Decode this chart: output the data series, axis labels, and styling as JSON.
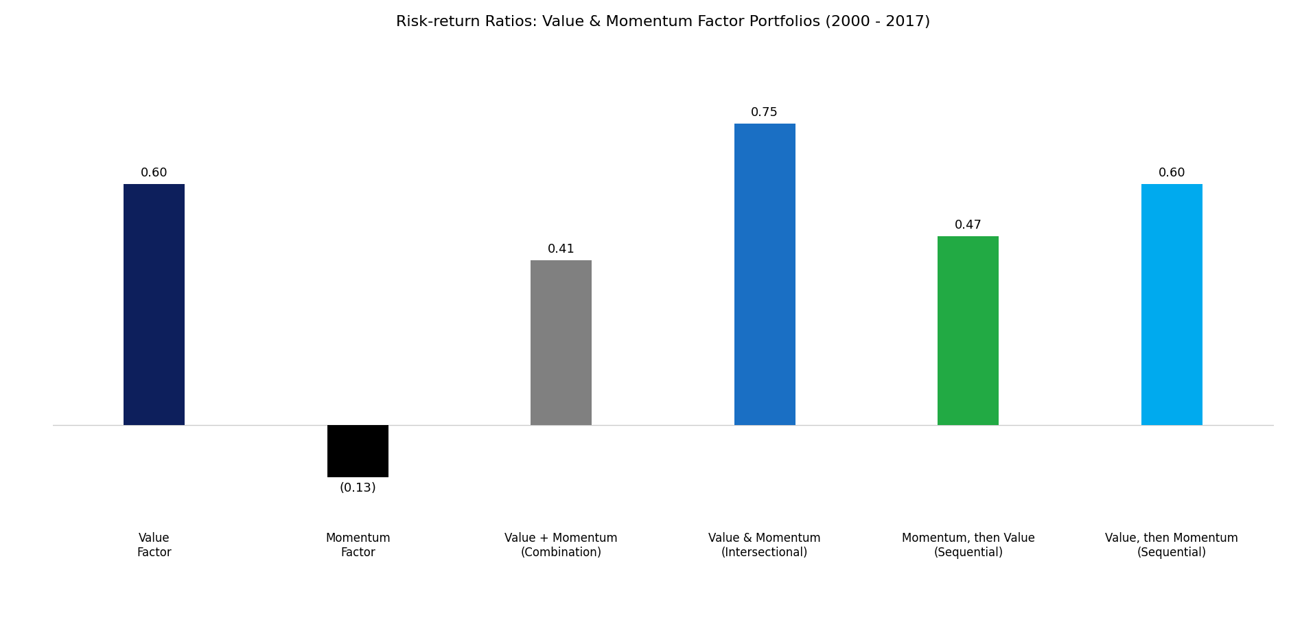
{
  "title": "Risk-return Ratios: Value & Momentum Factor Portfolios (2000 - 2017)",
  "categories": [
    "Value\nFactor",
    "Momentum\nFactor",
    "Value + Momentum\n(Combination)",
    "Value & Momentum\n(Intersectional)",
    "Momentum, then Value\n(Sequential)",
    "Value, then Momentum\n(Sequential)"
  ],
  "values": [
    0.6,
    -0.13,
    0.41,
    0.75,
    0.47,
    0.6
  ],
  "colors": [
    "#0d1f5c",
    "#000000",
    "#808080",
    "#1a6fc4",
    "#22aa44",
    "#00aaee"
  ],
  "label_format": [
    "0.60",
    "(0.13)",
    "0.41",
    "0.75",
    "0.47",
    "0.60"
  ],
  "ylim": [
    -0.25,
    0.95
  ],
  "title_fontsize": 16,
  "label_fontsize": 13,
  "tick_fontsize": 12,
  "bar_width": 0.3,
  "background_color": "#ffffff",
  "xlim": [
    -0.5,
    5.5
  ]
}
